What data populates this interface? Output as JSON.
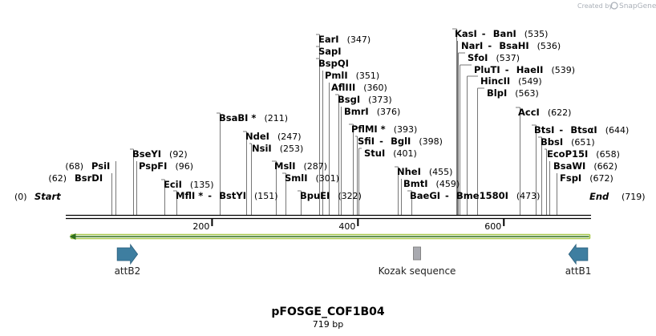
{
  "credit": {
    "prefix": "Created by",
    "brand": "SnapGene"
  },
  "sequence": {
    "name": "pFOSGE_COF1B04",
    "length_label": "719 bp",
    "length": 719
  },
  "ends": {
    "start": "Start",
    "start_pos": "(0)",
    "end": "End",
    "end_pos": "(719)"
  },
  "ticks": [
    {
      "value": 200,
      "label": "200"
    },
    {
      "value": 400,
      "label": "400"
    },
    {
      "value": 600,
      "label": "600"
    }
  ],
  "enzymes": [
    {
      "id": "bsrdi",
      "site": 62,
      "parts": [
        "BsrDI"
      ],
      "pos_text": "(62)",
      "label_pos": "left"
    },
    {
      "id": "psii",
      "site": 68,
      "parts": [
        "PsiI"
      ],
      "pos_text": "(68)",
      "label_pos": "left"
    },
    {
      "id": "bseyi",
      "site": 92,
      "parts": [
        "BseYI"
      ],
      "pos_text": "(92)",
      "label_pos": "right"
    },
    {
      "id": "pspfi",
      "site": 96,
      "parts": [
        "PspFI"
      ],
      "pos_text": "(96)",
      "label_pos": "right"
    },
    {
      "id": "ecii",
      "site": 135,
      "parts": [
        "EciI"
      ],
      "pos_text": "(135)",
      "label_pos": "right"
    },
    {
      "id": "mfli",
      "site": 151,
      "parts": [
        "MflI *",
        "BstYI"
      ],
      "pos_text": "(151)",
      "label_pos": "right"
    },
    {
      "id": "bsabi",
      "site": 211,
      "parts": [
        "BsaBI *"
      ],
      "pos_text": "(211)",
      "label_pos": "right"
    },
    {
      "id": "ndei",
      "site": 247,
      "parts": [
        "NdeI"
      ],
      "pos_text": "(247)",
      "label_pos": "right"
    },
    {
      "id": "nsii",
      "site": 253,
      "parts": [
        "NsiI"
      ],
      "pos_text": "(253)",
      "label_pos": "right"
    },
    {
      "id": "msli",
      "site": 287,
      "parts": [
        "MslI"
      ],
      "pos_text": "(287)",
      "label_pos": "right"
    },
    {
      "id": "smli",
      "site": 301,
      "parts": [
        "SmlI"
      ],
      "pos_text": "(301)",
      "label_pos": "right"
    },
    {
      "id": "bpuei",
      "site": 322,
      "parts": [
        "BpuEI"
      ],
      "pos_text": "(322)",
      "label_pos": "right"
    },
    {
      "id": "eari",
      "site": 347,
      "parts": [
        "EarI"
      ],
      "pos_text": "(347)",
      "label_pos": "right"
    },
    {
      "id": "sapi",
      "site": 347,
      "parts": [
        "SapI"
      ],
      "pos_text": "",
      "label_pos": "right"
    },
    {
      "id": "bspqi",
      "site": 347,
      "parts": [
        "BspQI"
      ],
      "pos_text": "",
      "label_pos": "right"
    },
    {
      "id": "pmli",
      "site": 351,
      "parts": [
        "PmlI"
      ],
      "pos_text": "(351)",
      "label_pos": "right"
    },
    {
      "id": "aflIII",
      "site": 360,
      "parts": [
        "AflIII"
      ],
      "pos_text": "(360)",
      "label_pos": "right"
    },
    {
      "id": "bsgi",
      "site": 373,
      "parts": [
        "BsgI"
      ],
      "pos_text": "(373)",
      "label_pos": "right"
    },
    {
      "id": "bmri",
      "site": 376,
      "parts": [
        "BmrI"
      ],
      "pos_text": "(376)",
      "label_pos": "right"
    },
    {
      "id": "pflmi",
      "site": 393,
      "parts": [
        "PflMI *"
      ],
      "pos_text": "(393)",
      "label_pos": "right"
    },
    {
      "id": "sfii",
      "site": 398,
      "parts": [
        "SfiI",
        "BglI"
      ],
      "pos_text": "(398)",
      "label_pos": "right"
    },
    {
      "id": "stui",
      "site": 401,
      "parts": [
        "StuI"
      ],
      "pos_text": "(401)",
      "label_pos": "right"
    },
    {
      "id": "nhei",
      "site": 455,
      "parts": [
        "NheI"
      ],
      "pos_text": "(455)",
      "label_pos": "right"
    },
    {
      "id": "bmti",
      "site": 459,
      "parts": [
        "BmtI"
      ],
      "pos_text": "(459)",
      "label_pos": "right"
    },
    {
      "id": "baegi",
      "site": 473,
      "parts": [
        "BaeGI",
        "Bme1580I"
      ],
      "pos_text": "(473)",
      "label_pos": "right"
    },
    {
      "id": "kasi",
      "site": 535,
      "parts": [
        "KasI",
        "BanI"
      ],
      "pos_text": "(535)",
      "label_pos": "right"
    },
    {
      "id": "nari",
      "site": 536,
      "parts": [
        "NarI",
        "BsaHI"
      ],
      "pos_text": "(536)",
      "label_pos": "right"
    },
    {
      "id": "sfoi",
      "site": 537,
      "parts": [
        "SfoI"
      ],
      "pos_text": "(537)",
      "label_pos": "right"
    },
    {
      "id": "pluti",
      "site": 539,
      "parts": [
        "PluTI",
        "HaeII"
      ],
      "pos_text": "(539)",
      "label_pos": "right"
    },
    {
      "id": "hincii",
      "site": 549,
      "parts": [
        "HincII"
      ],
      "pos_text": "(549)",
      "label_pos": "right"
    },
    {
      "id": "blpi",
      "site": 563,
      "parts": [
        "BlpI"
      ],
      "pos_text": "(563)",
      "label_pos": "right"
    },
    {
      "id": "acci",
      "site": 622,
      "parts": [
        "AccI"
      ],
      "pos_text": "(622)",
      "label_pos": "right"
    },
    {
      "id": "btsi",
      "site": 644,
      "parts": [
        "BtsI",
        "BtsαI"
      ],
      "pos_text": "(644)",
      "label_pos": "right"
    },
    {
      "id": "bbsi",
      "site": 651,
      "parts": [
        "BbsI"
      ],
      "pos_text": "(651)",
      "label_pos": "right"
    },
    {
      "id": "ecop15i",
      "site": 658,
      "parts": [
        "EcoP15I"
      ],
      "pos_text": "(658)",
      "label_pos": "right"
    },
    {
      "id": "bsawi",
      "site": 662,
      "parts": [
        "BsaWI"
      ],
      "pos_text": "(662)",
      "label_pos": "right"
    },
    {
      "id": "fspi",
      "site": 672,
      "parts": [
        "FspI"
      ],
      "pos_text": "(672)",
      "label_pos": "right"
    }
  ],
  "features": [
    {
      "id": "attb2",
      "name": "attB2",
      "start": 70,
      "end": 98,
      "shape": "arrow-right",
      "color": "#3e7ea0"
    },
    {
      "id": "kozak",
      "name": "Kozak sequence",
      "start": 476,
      "end": 486,
      "shape": "box",
      "color": "#a9aab0"
    },
    {
      "id": "attb1",
      "name": "attB1",
      "start": 689,
      "end": 715,
      "shape": "arrow-left",
      "color": "#3e7ea0"
    }
  ],
  "orf": {
    "start": 0,
    "end": 719,
    "direction": "reverse",
    "color": "#a9c94e"
  }
}
